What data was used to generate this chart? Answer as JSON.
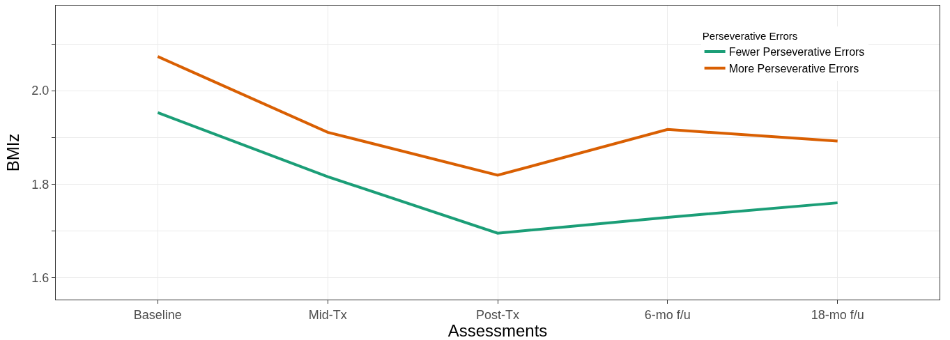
{
  "chart_data": {
    "type": "line",
    "xlabel": "Assessments",
    "ylabel": "BMIz",
    "legend_title": "Perseverative Errors",
    "categories": [
      "Baseline",
      "Mid-Tx",
      "Post-Tx",
      "6-mo f/u",
      "18-mo f/u"
    ],
    "series": [
      {
        "name": "Fewer Perseverative Errors",
        "color": "#1b9e77",
        "values": [
          1.953,
          1.816,
          1.695,
          1.729,
          1.76
        ]
      },
      {
        "name": "More Perseverative Errors",
        "color": "#d95f02",
        "values": [
          2.073,
          1.911,
          1.819,
          1.917,
          1.892
        ]
      }
    ],
    "ylim": [
      1.553,
      2.182
    ],
    "yticks": [
      {
        "value": 1.6,
        "label": "1.6"
      },
      {
        "value": 1.7,
        "label": null
      },
      {
        "value": 1.8,
        "label": "1.8"
      },
      {
        "value": 1.9,
        "label": null
      },
      {
        "value": 2.0,
        "label": "2.0"
      },
      {
        "value": 2.1,
        "label": null
      }
    ],
    "grid": true,
    "legend": "top right",
    "marker": "none",
    "line_style": "solid"
  }
}
